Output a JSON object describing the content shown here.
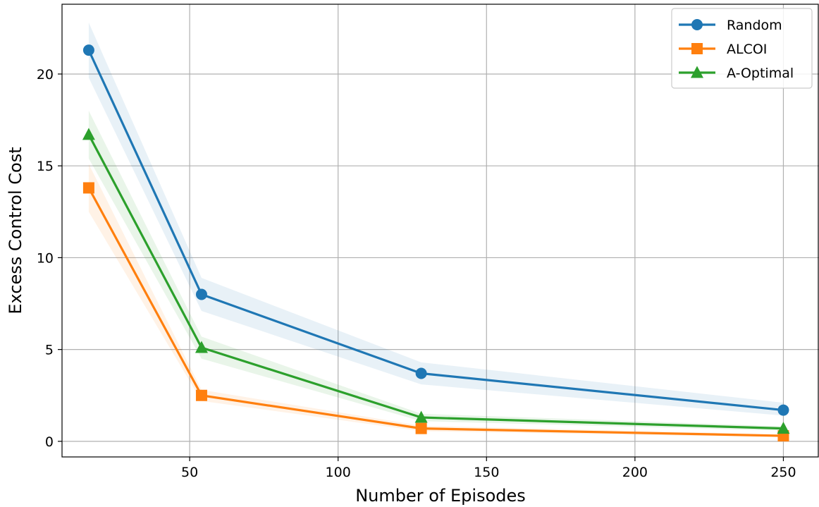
{
  "chart_data": {
    "type": "line",
    "title": "",
    "xlabel": "Number of Episodes",
    "ylabel": "Excess Control Cost",
    "xlim": [
      7,
      262
    ],
    "ylim": [
      -0.85,
      23.8
    ],
    "x_ticks": [
      50,
      100,
      150,
      200,
      250
    ],
    "y_ticks": [
      0,
      5,
      10,
      15,
      20
    ],
    "grid": true,
    "legend_position": "top-right",
    "x": [
      16,
      54,
      128,
      250
    ],
    "series": [
      {
        "name": "Random",
        "marker": "circle",
        "color": "#1f77b4",
        "values": [
          21.3,
          8.0,
          3.7,
          1.7
        ],
        "lower": [
          19.8,
          7.1,
          3.1,
          1.4
        ],
        "upper": [
          22.8,
          8.9,
          4.3,
          2.1
        ]
      },
      {
        "name": "ALCOI",
        "marker": "square",
        "color": "#ff7f0e",
        "values": [
          13.8,
          2.5,
          0.7,
          0.3
        ],
        "lower": [
          12.5,
          2.2,
          0.55,
          0.22
        ],
        "upper": [
          15.1,
          2.8,
          0.85,
          0.38
        ]
      },
      {
        "name": "A-Optimal",
        "marker": "triangle",
        "color": "#2ca02c",
        "values": [
          16.7,
          5.1,
          1.3,
          0.7
        ],
        "lower": [
          15.4,
          4.5,
          1.1,
          0.58
        ],
        "upper": [
          18.0,
          5.7,
          1.5,
          0.82
        ]
      }
    ]
  }
}
